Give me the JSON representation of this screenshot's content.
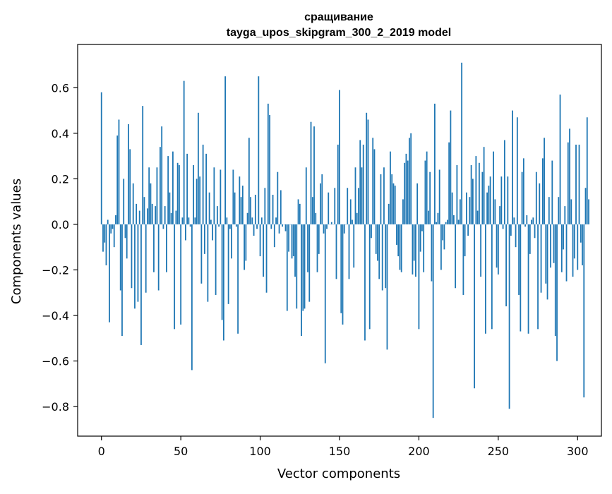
{
  "chart_data": {
    "type": "bar",
    "title_lines": [
      "сращивание",
      "tayga_upos_skipgram_300_2_2019 model"
    ],
    "xlabel": "Vector components",
    "ylabel": "Components values",
    "xlim": [
      -15,
      315
    ],
    "ylim": [
      -0.93,
      0.79
    ],
    "x_ticks": [
      0,
      50,
      100,
      150,
      200,
      250,
      300
    ],
    "x_tick_labels": [
      "0",
      "50",
      "100",
      "150",
      "200",
      "250",
      "300"
    ],
    "y_ticks": [
      -0.8,
      -0.6,
      -0.4,
      -0.2,
      0.0,
      0.2,
      0.4,
      0.6
    ],
    "y_tick_labels": [
      "−0.8",
      "−0.6",
      "−0.4",
      "−0.2",
      "0.0",
      "0.2",
      "0.4",
      "0.6"
    ],
    "grid": false,
    "bar_color": "#1f77b4",
    "values": [
      0.58,
      -0.12,
      -0.08,
      -0.18,
      0.02,
      -0.43,
      -0.04,
      -0.02,
      -0.1,
      0.04,
      0.39,
      0.46,
      -0.29,
      -0.49,
      0.2,
      -0.06,
      -0.15,
      0.44,
      0.33,
      -0.28,
      0.18,
      -0.37,
      0.09,
      -0.34,
      0.06,
      -0.53,
      0.52,
      0.12,
      -0.3,
      0.07,
      0.25,
      0.18,
      0.09,
      -0.21,
      0.08,
      0.25,
      -0.29,
      0.34,
      0.43,
      -0.02,
      0.08,
      -0.21,
      0.3,
      0.14,
      0.05,
      0.32,
      -0.46,
      0.06,
      0.27,
      0.26,
      -0.44,
      0.03,
      0.63,
      -0.07,
      0.31,
      0.03,
      -0.01,
      -0.64,
      0.26,
      0.03,
      0.2,
      0.49,
      0.21,
      -0.26,
      0.35,
      -0.13,
      0.31,
      -0.34,
      0.14,
      0.02,
      -0.07,
      0.25,
      -0.31,
      0.08,
      -0.01,
      0.24,
      -0.42,
      -0.51,
      0.65,
      0.03,
      -0.35,
      -0.02,
      -0.15,
      0.24,
      0.14,
      -0.01,
      -0.48,
      0.21,
      0.12,
      0.17,
      -0.2,
      -0.16,
      0.05,
      0.38,
      0.12,
      0.03,
      -0.05,
      0.13,
      -0.02,
      0.65,
      -0.14,
      0.03,
      -0.23,
      0.16,
      -0.3,
      0.53,
      0.48,
      -0.02,
      0.13,
      -0.1,
      0.03,
      0.23,
      -0.04,
      0.15,
      -0.01,
      0.0,
      -0.03,
      -0.38,
      -0.12,
      0.0,
      -0.15,
      -0.14,
      -0.23,
      -0.37,
      0.11,
      0.09,
      -0.49,
      -0.38,
      -0.37,
      0.25,
      -0.21,
      -0.34,
      0.45,
      0.12,
      0.43,
      0.05,
      -0.21,
      -0.13,
      0.18,
      0.22,
      -0.04,
      -0.61,
      -0.02,
      0.14,
      0.0,
      0.01,
      0.0,
      0.16,
      -0.24,
      0.35,
      0.59,
      -0.39,
      -0.44,
      -0.04,
      0.0,
      0.16,
      -0.24,
      0.11,
      0.02,
      -0.19,
      0.25,
      0.05,
      0.16,
      0.37,
      0.25,
      0.35,
      -0.51,
      0.49,
      0.46,
      -0.46,
      -0.06,
      0.38,
      0.33,
      -0.13,
      -0.16,
      -0.24,
      0.22,
      -0.29,
      0.25,
      -0.28,
      -0.55,
      0.09,
      0.32,
      0.22,
      0.18,
      0.17,
      -0.09,
      -0.14,
      -0.2,
      -0.21,
      0.11,
      0.27,
      0.31,
      0.28,
      0.38,
      0.4,
      -0.22,
      -0.16,
      -0.23,
      0.18,
      -0.46,
      -0.12,
      -0.03,
      -0.21,
      0.28,
      0.32,
      0.06,
      0.23,
      -0.25,
      -0.85,
      0.53,
      0.01,
      0.05,
      0.24,
      -0.2,
      -0.07,
      -0.11,
      0.01,
      0.02,
      0.36,
      0.5,
      0.14,
      0.04,
      -0.28,
      0.26,
      0.02,
      0.11,
      0.71,
      -0.31,
      -0.14,
      0.14,
      -0.05,
      0.12,
      0.26,
      0.2,
      -0.72,
      0.3,
      0.06,
      0.27,
      -0.23,
      0.23,
      0.34,
      -0.48,
      0.14,
      0.17,
      0.21,
      -0.46,
      0.32,
      0.11,
      -0.19,
      -0.22,
      0.08,
      0.21,
      -0.02,
      0.37,
      -0.36,
      0.21,
      -0.81,
      -0.05,
      0.5,
      0.03,
      -0.1,
      0.47,
      -0.31,
      -0.47,
      0.23,
      0.29,
      -0.01,
      0.04,
      -0.48,
      -0.13,
      0.02,
      0.03,
      -0.06,
      0.23,
      -0.46,
      0.18,
      -0.3,
      0.29,
      0.38,
      -0.26,
      -0.33,
      0.12,
      -0.19,
      0.28,
      -0.17,
      -0.49,
      -0.6,
      0.12,
      0.57,
      -0.21,
      -0.11,
      0.08,
      -0.25,
      0.36,
      0.42,
      0.11,
      -0.23,
      -0.15,
      0.35,
      -0.2,
      0.35,
      -0.08,
      -0.18,
      -0.76,
      0.16,
      0.47,
      0.11
    ]
  }
}
